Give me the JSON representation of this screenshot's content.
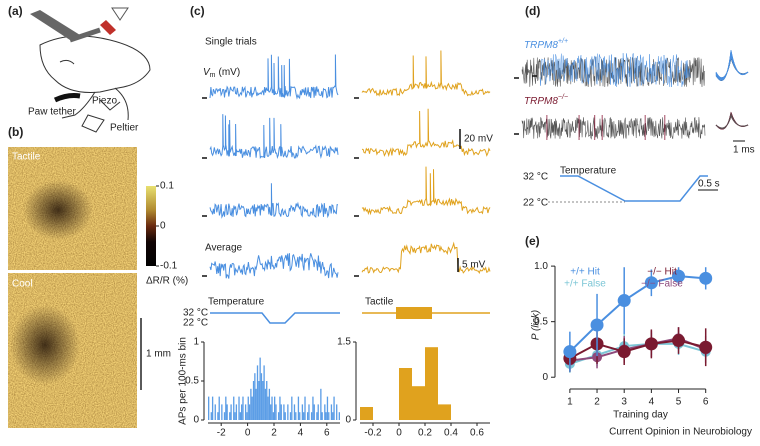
{
  "panel_labels": [
    "(a)",
    "(b)",
    "(c)",
    "(d)",
    "(e)"
  ],
  "panel_a": {
    "labels": [
      "Paw tether",
      "Piezo",
      "Peltier"
    ]
  },
  "panel_b": {
    "maps": [
      "Tactile",
      "Cool"
    ],
    "colorbar": {
      "label": "ΔR/R (%)",
      "lim": [
        -0.1,
        0.1
      ],
      "ticks": [
        0.1,
        0,
        -0.1
      ]
    },
    "scale_bar": "1 mm"
  },
  "panel_c": {
    "single_trials": "Single trials",
    "vm": {
      "symbol": "V",
      "subscript": "m",
      "unit": "(mV)"
    },
    "scale_single": "20 mV",
    "average": "Average",
    "scale_average": "5 mV",
    "temperature": {
      "label": "Temperature",
      "high": "32 °C",
      "low": "22 °C"
    },
    "tactile": "Tactile"
  },
  "panel_d": {
    "wild_type": {
      "name": "TRPM8",
      "superscript": "+/+"
    },
    "knockout": {
      "name": "TRPM8",
      "superscript": "−/−"
    },
    "scale_spike": "1 ms",
    "scale_trace": "0.5 s",
    "temperature": {
      "label": "Temperature",
      "high": "32 °C",
      "low": "22 °C"
    }
  },
  "chart_data": [
    {
      "type": "histogram",
      "ylabel": "APs per 100-ms bin",
      "color": "#5b9de6",
      "bins": [
        -3.0,
        -2.9,
        -2.8,
        -2.7,
        -2.6,
        -2.5,
        -2.4,
        -2.3,
        -2.2,
        -2.1,
        -2.0,
        -1.9,
        -1.8,
        -1.7,
        -1.6,
        -1.5,
        -1.4,
        -1.3,
        -1.2,
        -1.1,
        -1.0,
        -0.9,
        -0.8,
        -0.7,
        -0.6,
        -0.5,
        -0.4,
        -0.3,
        -0.2,
        -0.1,
        0.0,
        0.1,
        0.2,
        0.3,
        0.4,
        0.5,
        0.6,
        0.7,
        0.8,
        0.9,
        1.0,
        1.1,
        1.2,
        1.3,
        1.4,
        1.5,
        1.6,
        1.7,
        1.8,
        1.9,
        2.0,
        2.1,
        2.2,
        2.3,
        2.4,
        2.5,
        2.6,
        2.7,
        2.8,
        2.9,
        3.0,
        3.1,
        3.2,
        3.3,
        3.4,
        3.5,
        3.6,
        3.7,
        3.8,
        3.9,
        4.0,
        4.1,
        4.2,
        4.3,
        4.4,
        4.5,
        4.6,
        4.7,
        4.8,
        4.9,
        5.0,
        5.1,
        5.2,
        5.3,
        5.4,
        5.5,
        5.6,
        5.7,
        5.8,
        5.9,
        6.0,
        6.1,
        6.2,
        6.3,
        6.4,
        6.5,
        6.6,
        6.7,
        6.8,
        6.9,
        7.0
      ],
      "values": [
        0.3,
        0,
        0.1,
        0.3,
        0,
        0.2,
        0,
        0.1,
        0.3,
        0,
        0.2,
        0,
        0.1,
        0.3,
        0.2,
        0,
        0.1,
        0.2,
        0,
        0.3,
        0.1,
        0.2,
        0,
        0.3,
        0.1,
        0.2,
        0.3,
        0,
        0.2,
        0.1,
        0.3,
        0.2,
        0.4,
        0.3,
        0.5,
        0.6,
        0.4,
        0.7,
        0.5,
        0.8,
        0.6,
        0.5,
        0.7,
        0.4,
        0.5,
        0.3,
        0.4,
        0.2,
        0.3,
        0.1,
        0.3,
        0.2,
        0,
        0.1,
        0.3,
        0.2,
        0,
        0.2,
        0.1,
        0,
        0.2,
        0,
        0.1,
        0.3,
        0,
        0.2,
        0.1,
        0,
        0.3,
        0.1,
        0,
        0.2,
        0.1,
        0.3,
        0,
        0.1,
        0.2,
        0,
        0.1,
        0.3,
        0.2,
        0,
        0.1,
        0.2,
        0,
        0.4,
        0.1,
        0,
        0.2,
        0.1,
        0.3,
        0.1,
        0,
        0.2,
        0.1,
        0.3,
        0,
        0.2,
        0,
        0.1
      ],
      "xlim": [
        -3,
        7
      ],
      "ylim": [
        0,
        1
      ],
      "xticks": [
        -2,
        0,
        2,
        4,
        6
      ],
      "yticks": [
        0,
        0.5,
        1
      ]
    },
    {
      "type": "histogram",
      "color": "#e0a21e",
      "bins": [
        -0.3,
        -0.2,
        -0.1,
        0,
        0.1,
        0.2,
        0.3,
        0.4,
        0.5,
        0.6,
        0.7
      ],
      "values": [
        0.25,
        0,
        0,
        1.0,
        0.65,
        1.4,
        0.3,
        0,
        0,
        0
      ],
      "xlim": [
        -0.3,
        0.7
      ],
      "ylim": [
        0,
        1.5
      ],
      "xticks": [
        -0.2,
        0,
        0.2,
        0.4,
        0.6
      ],
      "yticks": [
        0,
        1.5
      ]
    },
    {
      "type": "line",
      "xlabel": "Training day",
      "ylabel": "P (lick)",
      "x": [
        1,
        2,
        3,
        4,
        5,
        6
      ],
      "xlim": [
        0.6,
        6.6
      ],
      "ylim": [
        -0.07,
        1.1
      ],
      "xticks": [
        1,
        2,
        3,
        4,
        5,
        6
      ],
      "yticks": [
        0,
        0.5,
        {
          "value": 1,
          "label": "1.0"
        }
      ],
      "series": [
        {
          "name": "+/+ Hit",
          "color": "#4a8fe0",
          "values": [
            0.23,
            0.47,
            0.69,
            0.85,
            0.91,
            0.89
          ],
          "errors": [
            0.18,
            0.28,
            0.3,
            0.12,
            0.08,
            0.1
          ]
        },
        {
          "name": "+/+ False",
          "color": "#7cc6d6",
          "values": [
            0.12,
            0.2,
            0.28,
            0.3,
            0.3,
            0.23
          ],
          "errors": [
            0.08,
            0.1,
            0.12,
            0.1,
            0.1,
            0.1
          ]
        },
        {
          "name": "−/− Hit",
          "color": "#7a1a30",
          "values": [
            0.17,
            0.3,
            0.23,
            0.3,
            0.33,
            0.27
          ],
          "errors": [
            0.12,
            0.18,
            0.12,
            0.13,
            0.12,
            0.17
          ]
        },
        {
          "name": "−/− False",
          "color": "#8e4a7c",
          "values": [
            0.15,
            0.18,
            0.25,
            0.3,
            0.35,
            0.25
          ],
          "errors": [
            0.1,
            0.1,
            0.12,
            0.12,
            0.1,
            0.12
          ]
        }
      ]
    }
  ],
  "footer": "Current Opinion in Neurobiology"
}
